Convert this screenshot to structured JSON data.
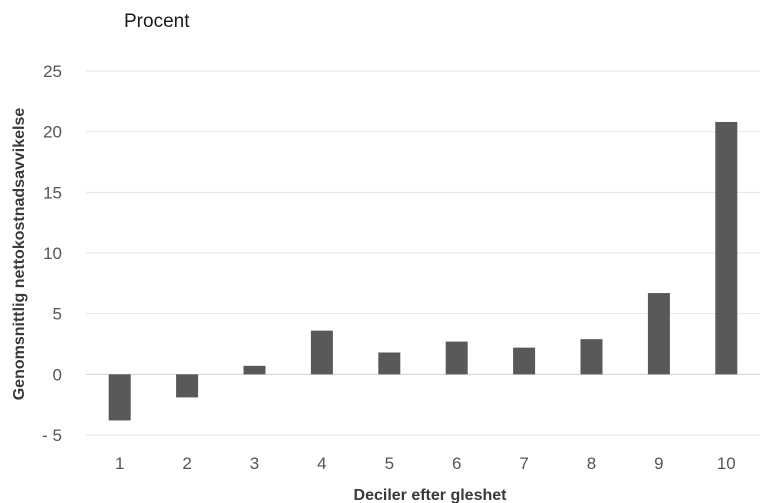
{
  "chart_data": {
    "type": "bar",
    "unit_label": "Procent",
    "xlabel": "Deciler efter gleshet",
    "ylabel": "Genomsnittlig nettokostnadsavvikelse",
    "categories": [
      "1",
      "2",
      "3",
      "4",
      "5",
      "6",
      "7",
      "8",
      "9",
      "10"
    ],
    "values": [
      -3.8,
      -1.9,
      0.7,
      3.6,
      1.8,
      2.7,
      2.2,
      2.9,
      6.7,
      20.8
    ],
    "ylim": [
      -5,
      25
    ],
    "yticks": [
      -5,
      0,
      5,
      10,
      15,
      20,
      25
    ],
    "ytick_labels": [
      "- 5",
      "0",
      "5",
      "10",
      "15",
      "20",
      "25"
    ],
    "bar_color": "#595959",
    "grid": true,
    "legend": false
  }
}
